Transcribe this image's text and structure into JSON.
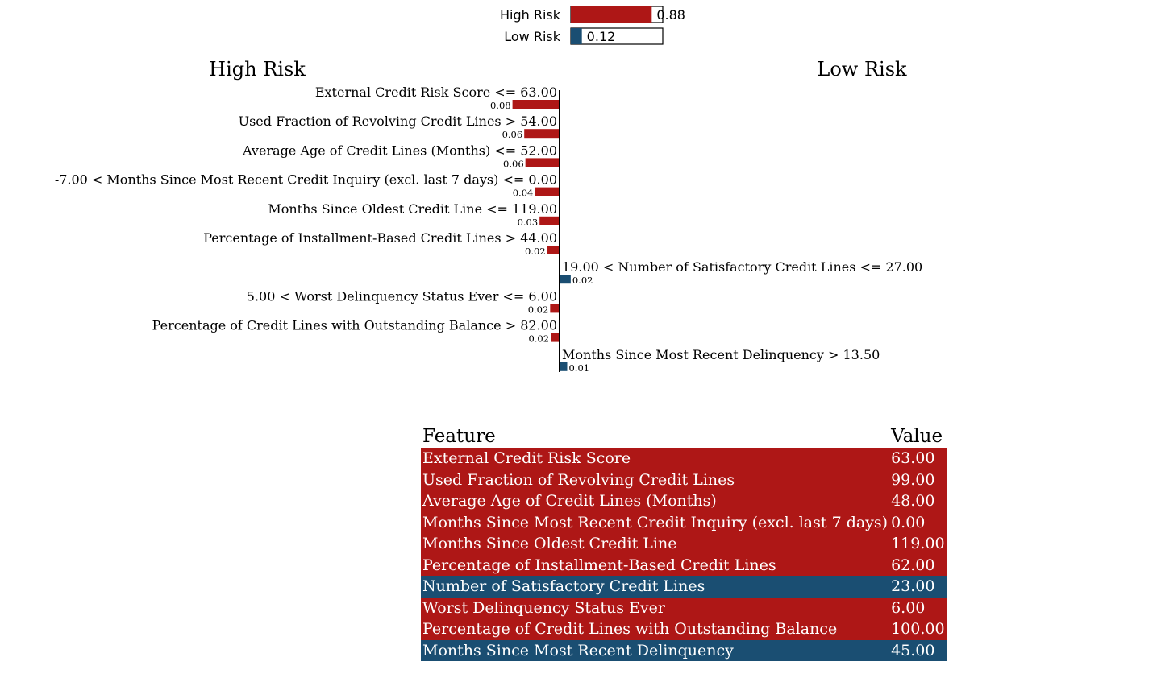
{
  "colors": {
    "high_risk": "#ae1716",
    "low_risk": "#1a4e72"
  },
  "chart_data": [
    {
      "type": "bar",
      "orientation": "horizontal",
      "categories": [
        "High Risk",
        "Low Risk"
      ],
      "values": [
        0.88,
        0.12
      ],
      "value_labels": [
        "0.88",
        "0.12"
      ],
      "xlim": [
        0,
        1
      ]
    },
    {
      "type": "bar",
      "orientation": "horizontal",
      "class_labels": {
        "negative": "High Risk",
        "positive": "Low Risk"
      },
      "features": [
        {
          "label": "External Credit Risk Score <= 63.00",
          "weight": -0.08,
          "weight_label": "0.08"
        },
        {
          "label": "Used Fraction of Revolving Credit Lines > 54.00",
          "weight": -0.06,
          "weight_label": "0.06"
        },
        {
          "label": "Average Age of Credit Lines (Months) <= 52.00",
          "weight": -0.058,
          "weight_label": "0.06"
        },
        {
          "label": "-7.00 < Months Since Most Recent Credit Inquiry (excl. last 7 days) <= 0.00",
          "weight": -0.042,
          "weight_label": "0.04"
        },
        {
          "label": "Months Since Oldest Credit Line <= 119.00",
          "weight": -0.034,
          "weight_label": "0.03"
        },
        {
          "label": "Percentage of Installment-Based Credit Lines > 44.00",
          "weight": -0.021,
          "weight_label": "0.02"
        },
        {
          "label": "19.00 < Number of Satisfactory Credit Lines <= 27.00",
          "weight": 0.019,
          "weight_label": "0.02"
        },
        {
          "label": "5.00 < Worst Delinquency Status Ever <= 6.00",
          "weight": -0.016,
          "weight_label": "0.02"
        },
        {
          "label": "Percentage of Credit Lines with Outstanding Balance > 82.00",
          "weight": -0.015,
          "weight_label": "0.02"
        },
        {
          "label": "Months Since Most Recent Delinquency > 13.50",
          "weight": 0.013,
          "weight_label": "0.01"
        }
      ]
    },
    {
      "type": "table",
      "columns": [
        "Feature",
        "Value"
      ],
      "rows": [
        {
          "feature": "External Credit Risk Score",
          "value": "63.00",
          "class": "high_risk"
        },
        {
          "feature": "Used Fraction of Revolving Credit Lines",
          "value": "99.00",
          "class": "high_risk"
        },
        {
          "feature": "Average Age of Credit Lines (Months)",
          "value": "48.00",
          "class": "high_risk"
        },
        {
          "feature": "Months Since Most Recent Credit Inquiry (excl. last 7 days)",
          "value": "0.00",
          "class": "high_risk"
        },
        {
          "feature": "Months Since Oldest Credit Line",
          "value": "119.00",
          "class": "high_risk"
        },
        {
          "feature": "Percentage of Installment-Based Credit Lines",
          "value": "62.00",
          "class": "high_risk"
        },
        {
          "feature": "Number of Satisfactory Credit Lines",
          "value": "23.00",
          "class": "low_risk"
        },
        {
          "feature": "Worst Delinquency Status Ever",
          "value": "6.00",
          "class": "high_risk"
        },
        {
          "feature": "Percentage of Credit Lines with Outstanding Balance",
          "value": "100.00",
          "class": "high_risk"
        },
        {
          "feature": "Months Since Most Recent Delinquency",
          "value": "45.00",
          "class": "low_risk"
        }
      ]
    }
  ]
}
